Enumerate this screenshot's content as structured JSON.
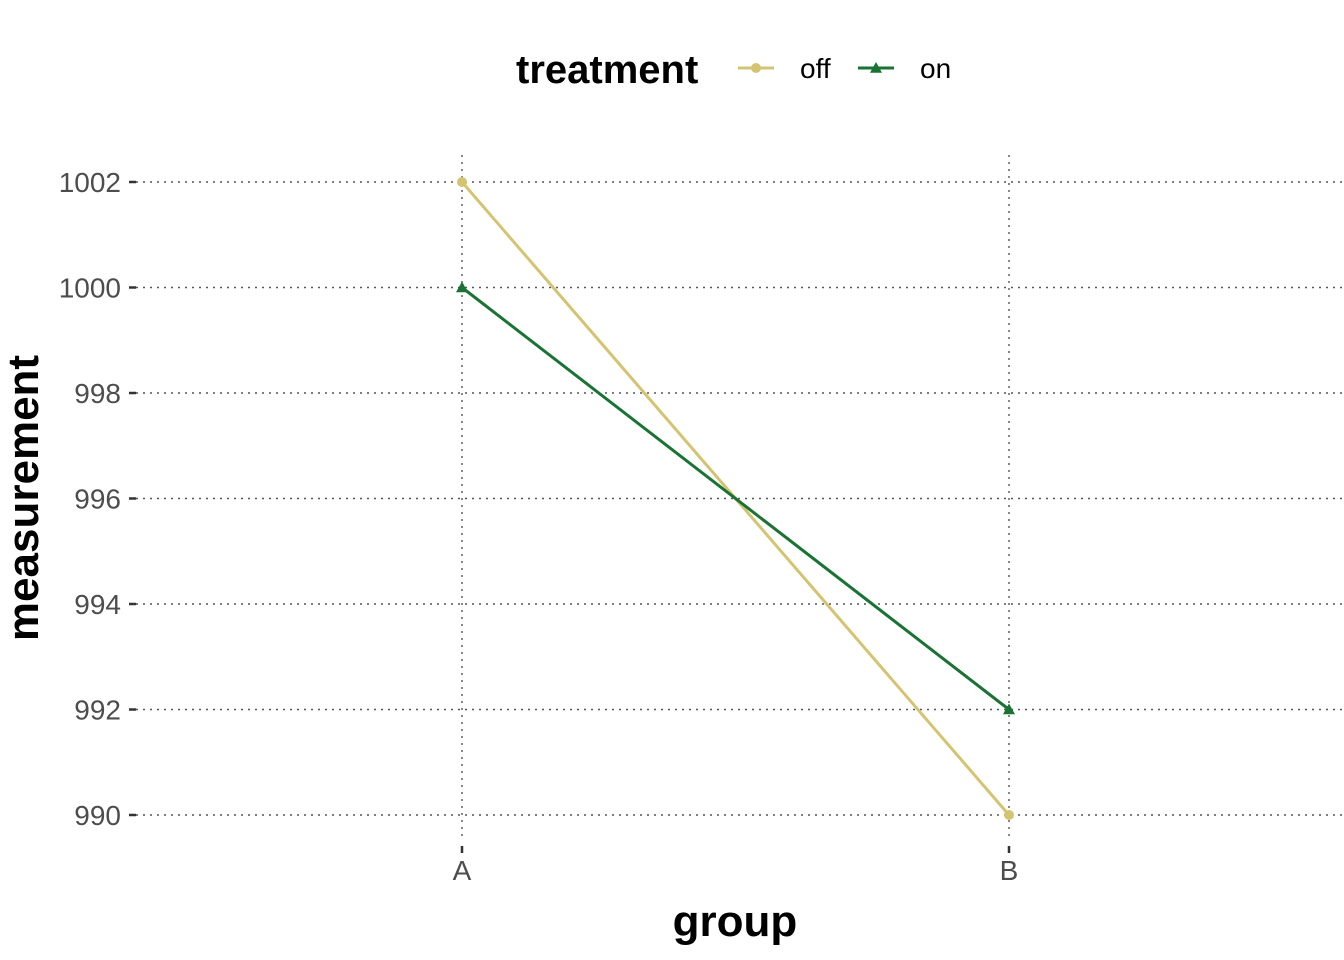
{
  "chart_data": {
    "type": "line",
    "categories": [
      "A",
      "B"
    ],
    "xlabel": "group",
    "ylabel": "measurement",
    "ylim": [
      989.5,
      1002.5
    ],
    "yticks": [
      990,
      992,
      994,
      996,
      998,
      1000,
      1002
    ],
    "grid": true,
    "grid_style": "dotted",
    "legend": {
      "title": "treatment",
      "position": "top"
    },
    "series": [
      {
        "name": "off",
        "values": [
          1002,
          990
        ],
        "color": "#d4c471",
        "marker": "circle"
      },
      {
        "name": "on",
        "values": [
          1000,
          992
        ],
        "color": "#1a7334",
        "marker": "triangle"
      }
    ]
  }
}
